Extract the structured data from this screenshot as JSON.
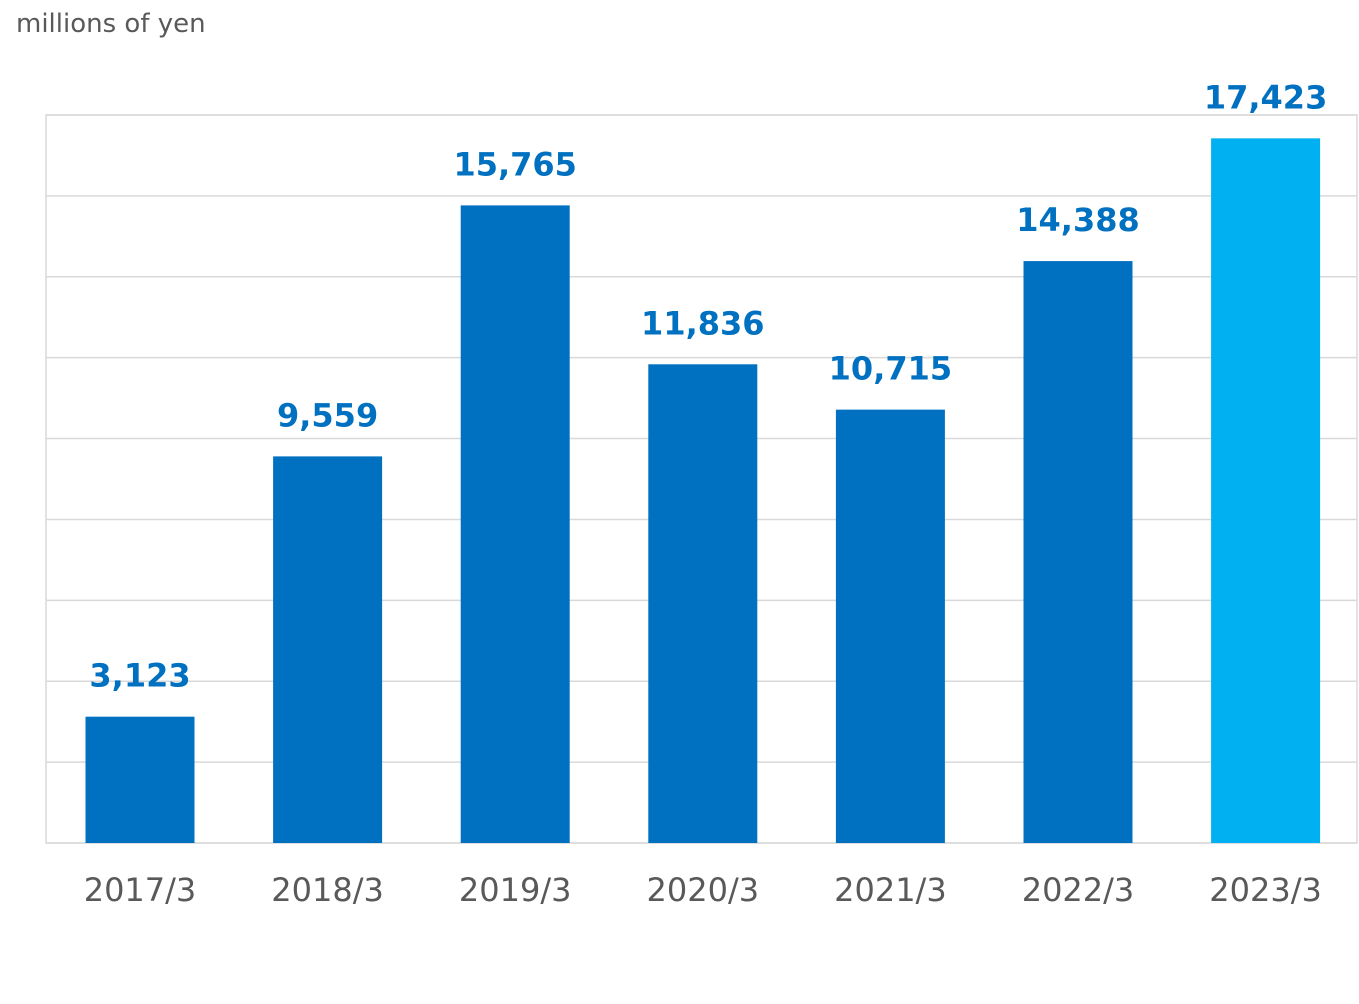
{
  "chart_data": {
    "type": "bar",
    "title": "",
    "unit_label": "millions of yen",
    "xlabel": "",
    "ylabel": "",
    "categories": [
      "2017/3",
      "2018/3",
      "2019/3",
      "2020/3",
      "2021/3",
      "2022/3",
      "2023/3"
    ],
    "values": [
      3123,
      9559,
      15765,
      11836,
      10715,
      14388,
      17423
    ],
    "value_labels": [
      "3,123",
      "9,559",
      "15,765",
      "11,836",
      "10,715",
      "14,388",
      "17,423"
    ],
    "ylim": [
      0,
      18000
    ],
    "y_gridline_step": 2000,
    "y_tick_labels_shown": false,
    "grid": true,
    "legend": "none",
    "colors": {
      "bar": "#0070c0",
      "highlight_bar": "#00b0f0",
      "value_label": "#0070c0",
      "grid": "#d9d9d9",
      "text": "#595959"
    },
    "highlight_index": 6
  }
}
